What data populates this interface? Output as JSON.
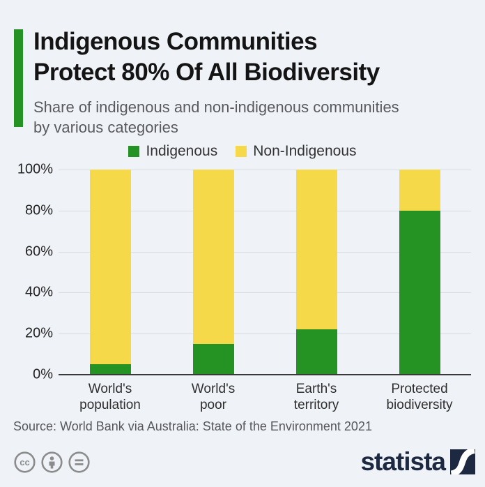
{
  "header": {
    "title_line1": "Indigenous Communities",
    "title_line2": "Protect 80% Of All Biodiversity",
    "subtitle_line1": "Share of indigenous and non-indigenous communities",
    "subtitle_line2": "by various categories"
  },
  "chart_data": {
    "type": "bar",
    "stacked": true,
    "title": "Indigenous Communities Protect 80% Of All Biodiversity",
    "subtitle": "Share of indigenous and non-indigenous communities by various categories",
    "categories": [
      {
        "line1": "World's",
        "line2": "population"
      },
      {
        "line1": "World's",
        "line2": "poor"
      },
      {
        "line1": "Earth's",
        "line2": "territory"
      },
      {
        "line1": "Protected",
        "line2": "biodiversity"
      }
    ],
    "series": [
      {
        "name": "Indigenous",
        "color": "#249323",
        "values": [
          5,
          15,
          22,
          80
        ]
      },
      {
        "name": "Non-Indigenous",
        "color": "#f5d948",
        "values": [
          95,
          85,
          78,
          20
        ]
      }
    ],
    "xlabel": "",
    "ylabel": "",
    "ylim": [
      0,
      100
    ],
    "yticks": [
      0,
      20,
      40,
      60,
      80,
      100
    ],
    "ytick_labels": [
      "0%",
      "20%",
      "40%",
      "60%",
      "80%",
      "100%"
    ],
    "grid": true,
    "legend_position": "top"
  },
  "source": {
    "text": "Source: World Bank via Australia: State of the Environment 2021"
  },
  "footer": {
    "brand": "statista",
    "license_icons": [
      "cc-icon",
      "attribution-person-icon",
      "equals-icon"
    ]
  },
  "colors": {
    "background": "#eff3f8",
    "accent_green": "#249323",
    "bar_yellow": "#f5d948",
    "gridline": "#d7dce2",
    "axis": "#3a3a3a",
    "brand_navy": "#1d2940",
    "icon_gray": "#8b8b8b"
  }
}
